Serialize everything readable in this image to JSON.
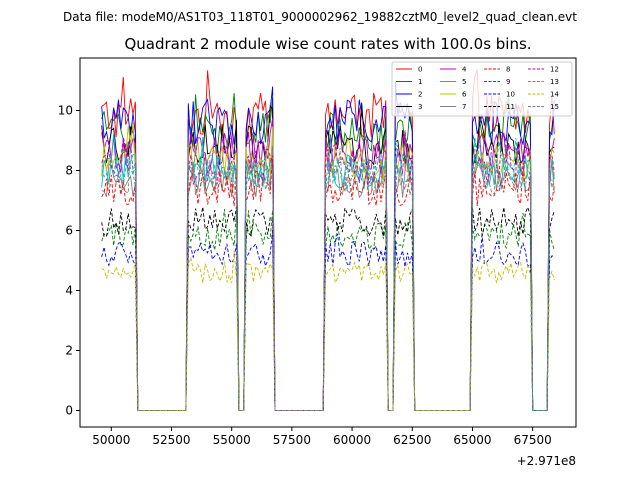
{
  "suptitle": "Data file: modeM0/AS1T03_118T01_9000002962_19882cztM0_level2_quad_clean.evt",
  "chart_data": {
    "type": "line",
    "title": "Quadrant 2 module wise count rates with 100.0s bins.",
    "xlabel": "",
    "ylabel": "",
    "x_offset_label": "+2.971e8",
    "xlim": [
      48700,
      69300
    ],
    "ylim": [
      -0.55,
      11.75
    ],
    "x_ticks": [
      50000,
      52500,
      55000,
      57500,
      60000,
      62500,
      65000,
      67500
    ],
    "x_tick_labels": [
      "50000",
      "52500",
      "55000",
      "57500",
      "60000",
      "62500",
      "65000",
      "67500"
    ],
    "y_ticks": [
      0,
      2,
      4,
      6,
      8,
      10
    ],
    "y_tick_labels": [
      "0",
      "2",
      "4",
      "6",
      "8",
      "10"
    ],
    "good_time_intervals": [
      [
        49600,
        51000
      ],
      [
        53200,
        55200
      ],
      [
        55600,
        56700
      ],
      [
        58900,
        61400
      ],
      [
        61800,
        62500
      ],
      [
        65000,
        67400
      ],
      [
        68200,
        68400
      ]
    ],
    "series": [
      {
        "name": "0",
        "color": "#ff0000",
        "dash": "solid",
        "level": 9.8
      },
      {
        "name": "1",
        "color": "#008000",
        "dash": "solid",
        "level": 9.3
      },
      {
        "name": "2",
        "color": "#0000ff",
        "dash": "solid",
        "level": 9.6
      },
      {
        "name": "3",
        "color": "#000000",
        "dash": "solid",
        "level": 8.9
      },
      {
        "name": "4",
        "color": "#c000c0",
        "dash": "solid",
        "level": 8.6
      },
      {
        "name": "5",
        "color": "#00bfbf",
        "dash": "solid",
        "level": 8.0
      },
      {
        "name": "6",
        "color": "#bfbf00",
        "dash": "solid",
        "level": 8.3
      },
      {
        "name": "7",
        "color": "#808080",
        "dash": "solid",
        "level": 7.7
      },
      {
        "name": "8",
        "color": "#ff0000",
        "dash": "dashed",
        "level": 7.4
      },
      {
        "name": "9",
        "color": "#008000",
        "dash": "dashed",
        "level": 5.8
      },
      {
        "name": "10",
        "color": "#0000ff",
        "dash": "dashed",
        "level": 5.2
      },
      {
        "name": "11",
        "color": "#000000",
        "dash": "dashed",
        "level": 6.3
      },
      {
        "name": "12",
        "color": "#c000c0",
        "dash": "dashed",
        "level": 8.2
      },
      {
        "name": "13",
        "color": "#00bfbf",
        "dash": "dashed",
        "level": 7.9
      },
      {
        "name": "14",
        "color": "#bfbf00",
        "dash": "dashed",
        "level": 4.6
      },
      {
        "name": "15",
        "color": "#808080",
        "dash": "dashed",
        "level": 7.8
      }
    ]
  }
}
